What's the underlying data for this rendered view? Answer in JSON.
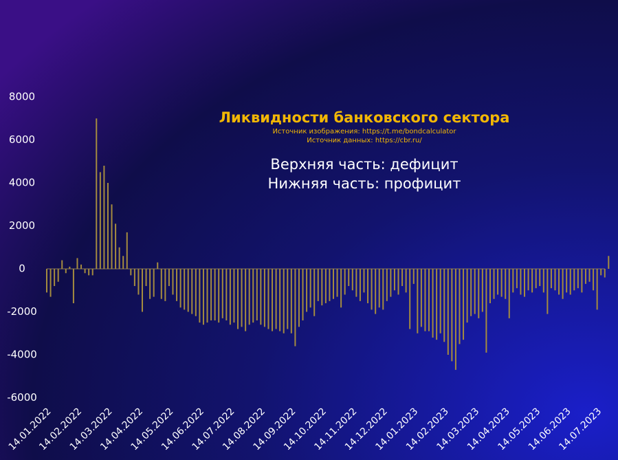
{
  "chart_data": {
    "type": "bar",
    "title": "Ликвидности банковского сектора",
    "subtitles": [
      "Источник изображения: https://t.me/bondcalculator",
      "Источник данных: https://cbr.ru/"
    ],
    "annotations": [
      "Верхняя часть: дефицит",
      "Нижняя часть: профицит"
    ],
    "color": "#a58c3f",
    "ylim": [
      -6000,
      8000
    ],
    "yticks": [
      -6000,
      -4000,
      -2000,
      0,
      2000,
      4000,
      6000,
      8000
    ],
    "categories": [
      "14.01.2022",
      null,
      null,
      null,
      null,
      null,
      null,
      null,
      "14.02.2022",
      null,
      null,
      null,
      null,
      null,
      null,
      null,
      "14.03.2022",
      null,
      null,
      null,
      null,
      null,
      null,
      null,
      "14.04.2022",
      null,
      null,
      null,
      null,
      null,
      null,
      null,
      "14.05.2022",
      null,
      null,
      null,
      null,
      null,
      null,
      null,
      "14.06.2022",
      null,
      null,
      null,
      null,
      null,
      null,
      null,
      "14.07.2022",
      null,
      null,
      null,
      null,
      null,
      null,
      null,
      "14.08.2022",
      null,
      null,
      null,
      null,
      null,
      null,
      null,
      "14.09.2022",
      null,
      null,
      null,
      null,
      null,
      null,
      null,
      "14.10.2022",
      null,
      null,
      null,
      null,
      null,
      null,
      null,
      "14.11.2022",
      null,
      null,
      null,
      null,
      null,
      null,
      null,
      "14.12.2022",
      null,
      null,
      null,
      null,
      null,
      null,
      null,
      "14.01.2023",
      null,
      null,
      null,
      null,
      null,
      null,
      null,
      "14.02.2023",
      null,
      null,
      null,
      null,
      null,
      null,
      null,
      "14.03.2023",
      null,
      null,
      null,
      null,
      null,
      null,
      null,
      "14.04.2023",
      null,
      null,
      null,
      null,
      null,
      null,
      null,
      "14.05.2023",
      null,
      null,
      null,
      null,
      null,
      null,
      null,
      "14.06.2023",
      null,
      null,
      null,
      null,
      null,
      null,
      null,
      "14.07.2023",
      null,
      null,
      null
    ],
    "values": [
      -1100,
      -1300,
      -800,
      -600,
      400,
      -200,
      100,
      -1600,
      500,
      200,
      -200,
      -300,
      -300,
      7000,
      4500,
      4800,
      4000,
      3000,
      2100,
      1000,
      600,
      1700,
      -300,
      -800,
      -1200,
      -2000,
      -800,
      -1400,
      -1300,
      300,
      -1400,
      -1500,
      -800,
      -1200,
      -1500,
      -1800,
      -1900,
      -2000,
      -2100,
      -2200,
      -2500,
      -2600,
      -2500,
      -2400,
      -2400,
      -2500,
      -2300,
      -2400,
      -2600,
      -2500,
      -2800,
      -2700,
      -2900,
      -2600,
      -2500,
      -2400,
      -2600,
      -2700,
      -2800,
      -2900,
      -2800,
      -2900,
      -3000,
      -2800,
      -3000,
      -3600,
      -2700,
      -2400,
      -2000,
      -1800,
      -2200,
      -1500,
      -1700,
      -1600,
      -1500,
      -1400,
      -1300,
      -1800,
      -1200,
      -800,
      -1000,
      -1300,
      -1500,
      -1100,
      -1600,
      -1900,
      -2100,
      -1800,
      -1900,
      -1500,
      -1300,
      -1000,
      -1200,
      -800,
      -1100,
      -2800,
      -700,
      -3000,
      -2700,
      -2900,
      -2900,
      -3200,
      -3300,
      -3000,
      -3400,
      -4000,
      -4300,
      -4700,
      -3500,
      -3300,
      -2500,
      -2200,
      -2100,
      -2300,
      -2000,
      -3900,
      -1600,
      -1400,
      -1200,
      -1300,
      -1400,
      -2300,
      -1100,
      -900,
      -1200,
      -1300,
      -1000,
      -1100,
      -900,
      -800,
      -1100,
      -2100,
      -900,
      -1000,
      -1200,
      -1400,
      -1100,
      -1200,
      -1000,
      -900,
      -1100,
      -700,
      -600,
      -1000,
      -1900,
      -300,
      -400,
      600
    ]
  }
}
